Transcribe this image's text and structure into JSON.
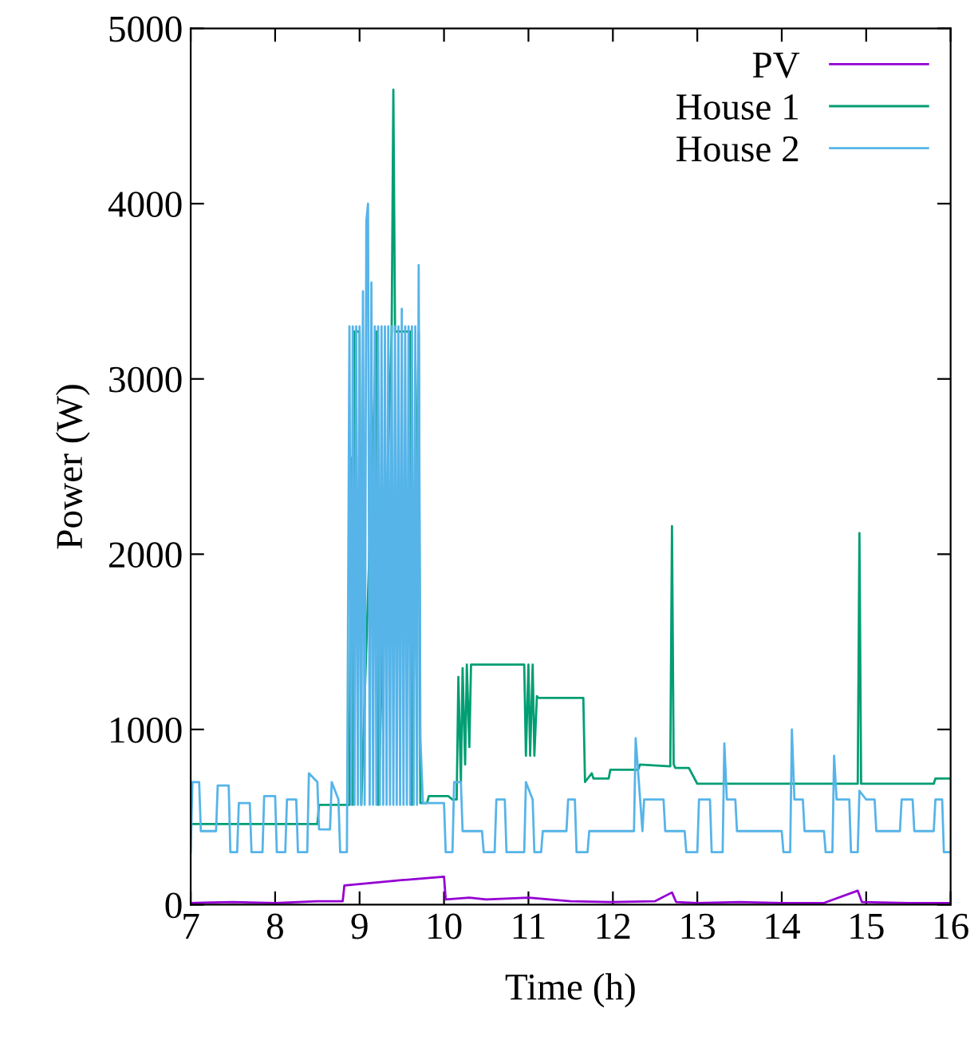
{
  "chart_data": {
    "type": "line",
    "xlabel": "Time (h)",
    "ylabel": "Power (W)",
    "xlim": [
      7,
      16
    ],
    "ylim": [
      0,
      5000
    ],
    "xticks": [
      7,
      8,
      9,
      10,
      11,
      12,
      13,
      14,
      15,
      16
    ],
    "yticks": [
      0,
      1000,
      2000,
      3000,
      4000,
      5000
    ],
    "grid": false,
    "legend": "top right",
    "marker": "none",
    "line_style": "solid",
    "series": [
      {
        "name": "PV",
        "color": "#9400d3",
        "x": [
          7.0,
          7.5,
          8.0,
          8.5,
          8.8,
          8.82,
          9.5,
          10.0,
          10.02,
          10.3,
          10.5,
          11.0,
          11.5,
          12.0,
          12.5,
          12.7,
          12.75,
          13.0,
          13.5,
          14.0,
          14.5,
          14.9,
          14.95,
          15.5,
          16.0
        ],
        "values": [
          10,
          15,
          10,
          20,
          20,
          110,
          140,
          160,
          30,
          40,
          30,
          40,
          20,
          15,
          20,
          70,
          15,
          10,
          15,
          10,
          10,
          80,
          15,
          10,
          10
        ]
      },
      {
        "name": "House 1",
        "color": "#009e73",
        "x": [
          7.0,
          8.5,
          8.52,
          8.88,
          8.9,
          8.92,
          8.94,
          9.0,
          9.02,
          9.2,
          9.22,
          9.38,
          9.4,
          9.42,
          9.6,
          9.62,
          9.7,
          9.72,
          9.8,
          9.82,
          10.05,
          10.1,
          10.15,
          10.17,
          10.2,
          10.22,
          10.25,
          10.27,
          10.3,
          10.32,
          10.95,
          10.97,
          11.0,
          11.02,
          11.05,
          11.07,
          11.1,
          11.12,
          11.65,
          11.67,
          11.75,
          11.77,
          11.95,
          11.97,
          12.3,
          12.32,
          12.68,
          12.7,
          12.72,
          12.74,
          12.9,
          13.0,
          13.02,
          14.9,
          14.92,
          14.94,
          15.8,
          15.82,
          16.0
        ],
        "values": [
          460,
          460,
          570,
          570,
          2550,
          570,
          3270,
          3270,
          570,
          3270,
          570,
          3270,
          4650,
          3270,
          3270,
          570,
          3270,
          580,
          580,
          620,
          620,
          600,
          600,
          1300,
          700,
          1350,
          800,
          1370,
          900,
          1370,
          1370,
          850,
          1370,
          850,
          1370,
          850,
          1190,
          1180,
          1180,
          700,
          750,
          720,
          720,
          770,
          770,
          800,
          790,
          2160,
          800,
          780,
          780,
          690,
          690,
          690,
          2120,
          690,
          690,
          720,
          720
        ]
      },
      {
        "name": "House 2",
        "color": "#56b4e9",
        "x": [
          7.0,
          7.02,
          7.1,
          7.12,
          7.3,
          7.32,
          7.45,
          7.47,
          7.55,
          7.57,
          7.7,
          7.72,
          7.85,
          7.87,
          8.0,
          8.02,
          8.12,
          8.14,
          8.25,
          8.27,
          8.38,
          8.4,
          8.5,
          8.52,
          8.65,
          8.67,
          8.75,
          8.77,
          8.85,
          8.88,
          8.9,
          8.92,
          8.94,
          8.96,
          8.98,
          9.0,
          9.02,
          9.04,
          9.06,
          9.08,
          9.1,
          9.12,
          9.14,
          9.16,
          9.18,
          9.2,
          9.22,
          9.24,
          9.26,
          9.28,
          9.3,
          9.32,
          9.34,
          9.36,
          9.38,
          9.4,
          9.42,
          9.44,
          9.46,
          9.48,
          9.5,
          9.52,
          9.54,
          9.56,
          9.58,
          9.6,
          9.62,
          9.64,
          9.66,
          9.68,
          9.7,
          9.72,
          9.75,
          10.0,
          10.02,
          10.1,
          10.12,
          10.2,
          10.22,
          10.45,
          10.47,
          10.6,
          10.62,
          10.72,
          10.74,
          10.95,
          10.97,
          11.05,
          11.07,
          11.15,
          11.17,
          11.45,
          11.47,
          11.55,
          11.57,
          11.7,
          11.72,
          12.25,
          12.27,
          12.35,
          12.37,
          12.6,
          12.62,
          12.85,
          12.87,
          13.0,
          13.02,
          13.15,
          13.17,
          13.3,
          13.32,
          13.35,
          13.45,
          13.47,
          14.0,
          14.02,
          14.1,
          14.12,
          14.15,
          14.25,
          14.27,
          14.5,
          14.52,
          14.6,
          14.62,
          14.65,
          14.8,
          14.82,
          14.9,
          14.92,
          15.0,
          15.1,
          15.12,
          15.4,
          15.42,
          15.55,
          15.57,
          15.8,
          15.82,
          15.9,
          15.92,
          16.0
        ],
        "values": [
          300,
          700,
          700,
          420,
          420,
          680,
          680,
          300,
          300,
          580,
          580,
          300,
          300,
          620,
          620,
          300,
          300,
          600,
          600,
          300,
          300,
          750,
          700,
          430,
          430,
          700,
          600,
          300,
          300,
          3300,
          570,
          3300,
          570,
          3300,
          570,
          3300,
          570,
          3500,
          570,
          3900,
          4000,
          570,
          3550,
          570,
          3300,
          570,
          3300,
          570,
          3300,
          570,
          3300,
          570,
          3300,
          570,
          3300,
          570,
          3300,
          570,
          3300,
          570,
          3400,
          570,
          3300,
          570,
          3300,
          570,
          3300,
          570,
          3300,
          570,
          3650,
          950,
          580,
          580,
          300,
          300,
          700,
          700,
          420,
          420,
          300,
          300,
          600,
          600,
          300,
          300,
          700,
          600,
          300,
          300,
          420,
          420,
          600,
          600,
          300,
          300,
          420,
          420,
          950,
          420,
          600,
          600,
          420,
          420,
          300,
          300,
          600,
          600,
          300,
          300,
          920,
          600,
          600,
          420,
          420,
          300,
          300,
          1000,
          600,
          600,
          420,
          420,
          300,
          300,
          850,
          600,
          600,
          300,
          300,
          650,
          600,
          600,
          420,
          420,
          600,
          600,
          420,
          420,
          600,
          600,
          300,
          300
        ]
      }
    ]
  }
}
